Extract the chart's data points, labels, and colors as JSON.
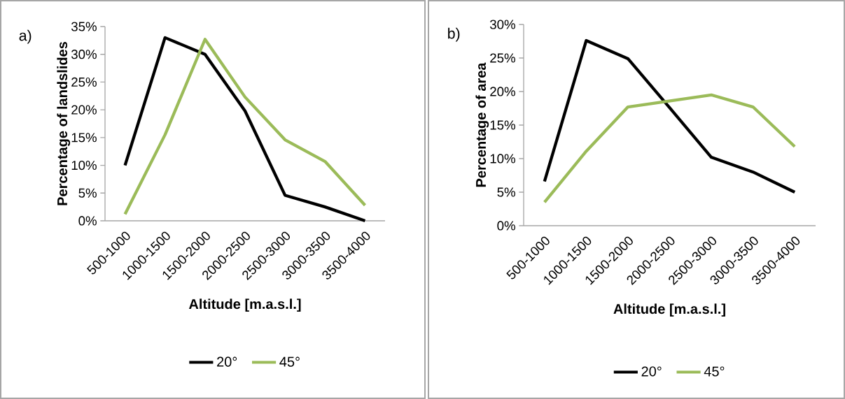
{
  "chart_data": [
    {
      "type": "line",
      "title": "a)",
      "xlabel": "Altitude [m.a.s.l.]",
      "ylabel": "Percentage of landslides",
      "categories": [
        "500-1000",
        "1000-1500",
        "1500-2000",
        "2000-2500",
        "2500-3000",
        "3000-3500",
        "3500-4000"
      ],
      "ylim": [
        0,
        35
      ],
      "yticks": [
        {
          "value": 0,
          "label": "0%"
        },
        {
          "value": 5,
          "label": "5%"
        },
        {
          "value": 10,
          "label": "10%"
        },
        {
          "value": 15,
          "label": "15%"
        },
        {
          "value": 20,
          "label": "20%"
        },
        {
          "value": 25,
          "label": "25%"
        },
        {
          "value": 30,
          "label": "30%"
        },
        {
          "value": 35,
          "label": "35%"
        }
      ],
      "series": [
        {
          "name": "20°",
          "color": "#000000",
          "values": [
            10.0,
            33.0,
            30.0,
            19.8,
            4.6,
            2.5,
            0.0
          ]
        },
        {
          "name": "45°",
          "color": "#9bbb59",
          "values": [
            1.2,
            15.5,
            32.7,
            22.3,
            14.6,
            10.7,
            2.8
          ]
        }
      ],
      "legend": "bottom",
      "grid": false,
      "marker": "none",
      "line_style": "solid"
    },
    {
      "type": "line",
      "title": "b)",
      "xlabel": "Altitude [m.a.s.l.]",
      "ylabel": "Percentage of area",
      "categories": [
        "500-1000",
        "1000-1500",
        "1500-2000",
        "2000-2500",
        "2500-3000",
        "3000-3500",
        "3500-4000"
      ],
      "ylim": [
        0,
        30
      ],
      "yticks": [
        {
          "value": 0,
          "label": "0%"
        },
        {
          "value": 5,
          "label": "5%"
        },
        {
          "value": 10,
          "label": "10%"
        },
        {
          "value": 15,
          "label": "15%"
        },
        {
          "value": 20,
          "label": "20%"
        },
        {
          "value": 25,
          "label": "25%"
        },
        {
          "value": 30,
          "label": "30%"
        }
      ],
      "series": [
        {
          "name": "20°",
          "color": "#000000",
          "values": [
            6.6,
            27.6,
            24.9,
            17.6,
            10.2,
            8.0,
            5.0
          ]
        },
        {
          "name": "45°",
          "color": "#9bbb59",
          "values": [
            3.5,
            11.1,
            17.7,
            18.6,
            19.5,
            17.7,
            11.8
          ]
        }
      ],
      "legend": "bottom",
      "grid": false,
      "marker": "none",
      "line_style": "solid"
    }
  ]
}
